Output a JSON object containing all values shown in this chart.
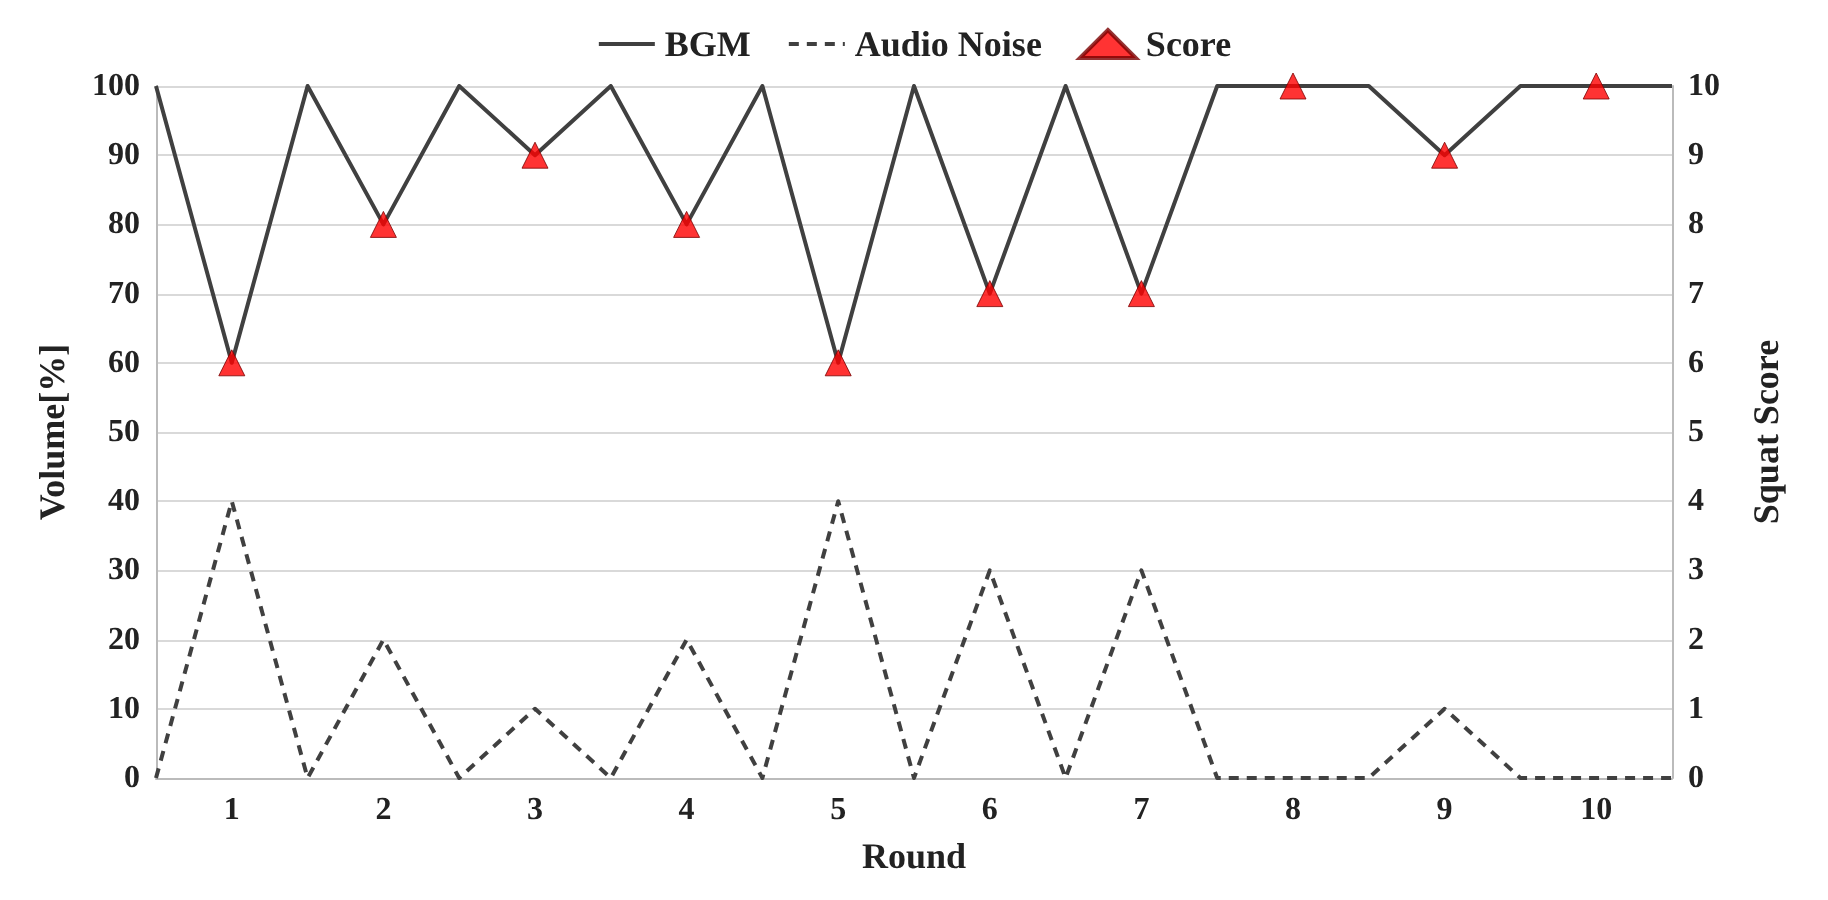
{
  "chart_data": {
    "type": "line",
    "xlabel": "Round",
    "ylabel": "Volume[%]",
    "y2label": "Squat Score",
    "xlim": [
      0.5,
      10.5
    ],
    "xticks": [
      1,
      2,
      3,
      4,
      5,
      6,
      7,
      8,
      9,
      10
    ],
    "ylim": [
      0,
      100
    ],
    "yticks": [
      0,
      10,
      20,
      30,
      40,
      50,
      60,
      70,
      80,
      90,
      100
    ],
    "y2lim": [
      0,
      10
    ],
    "y2ticks": [
      0,
      1,
      2,
      3,
      4,
      5,
      6,
      7,
      8,
      9,
      10
    ],
    "grid": "y",
    "legend": "top",
    "series": [
      {
        "name": "BGM",
        "type": "line",
        "color": "#404040",
        "line_style": "solid",
        "marker": "none",
        "x": [
          0.5,
          1,
          1.5,
          2,
          2.5,
          3,
          3.5,
          4,
          4.5,
          5,
          5.5,
          6,
          6.5,
          7,
          7.5,
          8,
          8.5,
          9,
          9.5,
          10,
          10.5
        ],
        "values": [
          100,
          60,
          100,
          80,
          100,
          90,
          100,
          80,
          100,
          60,
          100,
          70,
          100,
          70,
          100,
          100,
          100,
          90,
          100,
          100,
          100
        ]
      },
      {
        "name": "Audio Noise",
        "type": "line",
        "color": "#404040",
        "line_style": "dashed",
        "marker": "none",
        "x": [
          0.5,
          1,
          1.5,
          2,
          2.5,
          3,
          3.5,
          4,
          4.5,
          5,
          5.5,
          6,
          6.5,
          7,
          7.5,
          8,
          8.5,
          9,
          9.5,
          10,
          10.5
        ],
        "values": [
          0,
          40,
          0,
          20,
          0,
          10,
          0,
          20,
          0,
          40,
          0,
          30,
          0,
          30,
          0,
          0,
          0,
          10,
          0,
          0,
          0
        ]
      },
      {
        "name": "Score",
        "type": "scatter",
        "axis": "y2",
        "color": "#ff0000",
        "marker": "triangle",
        "x": [
          1,
          2,
          3,
          4,
          5,
          6,
          7,
          8,
          9,
          10
        ],
        "values": [
          6,
          8,
          9,
          8,
          6,
          7,
          7,
          10,
          9,
          10
        ]
      }
    ]
  }
}
